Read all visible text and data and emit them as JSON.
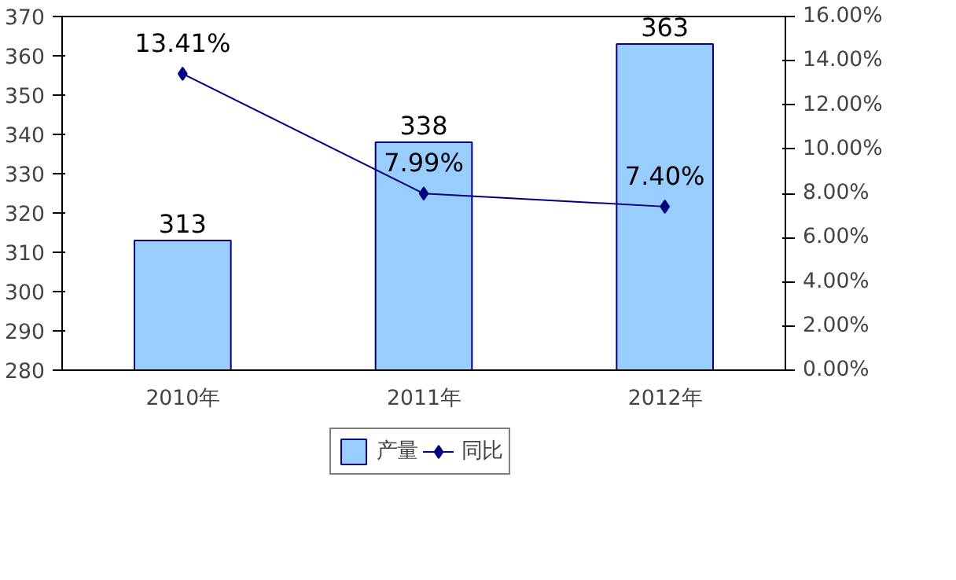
{
  "chart_data": {
    "type": "bar",
    "categories": [
      "2010年",
      "2011年",
      "2012年"
    ],
    "series": [
      {
        "name": "产量",
        "color": "#99ccff",
        "values": [
          313,
          338,
          363
        ],
        "value_labels": [
          "313",
          "338",
          "363"
        ]
      },
      {
        "name": "同比",
        "type": "line",
        "axis": "y2",
        "color": "#000080",
        "values": [
          13.41,
          7.99,
          7.4
        ],
        "value_labels": [
          "13.41%",
          "7.99%",
          "7.40%"
        ],
        "marker": "diamond"
      }
    ],
    "ylim": [
      280,
      370
    ],
    "yticks": [
      280,
      290,
      300,
      310,
      320,
      330,
      340,
      350,
      360,
      370
    ],
    "y2lim": [
      0,
      16
    ],
    "y2ticks": [
      {
        "value": 0,
        "label": "0.00%"
      },
      {
        "value": 2,
        "label": "2.00%"
      },
      {
        "value": 4,
        "label": "4.00%"
      },
      {
        "value": 6,
        "label": "6.00%"
      },
      {
        "value": 8,
        "label": "8.00%"
      },
      {
        "value": 10,
        "label": "10.00%"
      },
      {
        "value": 12,
        "label": "12.00%"
      },
      {
        "value": 14,
        "label": "14.00%"
      },
      {
        "value": 16,
        "label": "16.00%"
      }
    ],
    "legend": "bottom",
    "grid": false
  }
}
